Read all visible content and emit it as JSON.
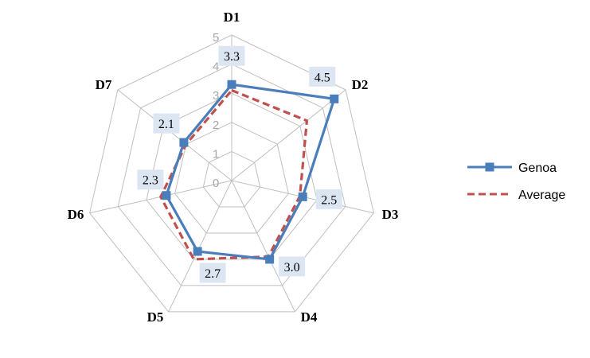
{
  "chart_data": {
    "type": "radar",
    "categories": [
      "D1",
      "D2",
      "D3",
      "D4",
      "D5",
      "D6",
      "D7"
    ],
    "rlim": [
      0,
      5
    ],
    "ticks": [
      "0",
      "1",
      "2",
      "3",
      "4",
      "5"
    ],
    "grid": true,
    "legend": "right",
    "series": [
      {
        "name": "Genoa",
        "values": [
          3.3,
          4.5,
          2.5,
          3.0,
          2.7,
          2.3,
          2.1
        ],
        "labels": [
          "3.3",
          "4.5",
          "2.5",
          "3.0",
          "2.7",
          "2.3",
          "2.1"
        ],
        "color": "#4a7ebb",
        "style": "solid-square-markers"
      },
      {
        "name": "Average",
        "values": [
          3.1,
          3.3,
          2.4,
          2.9,
          3.0,
          2.5,
          2.0
        ],
        "color": "#c0504d",
        "style": "dashed"
      }
    ]
  }
}
